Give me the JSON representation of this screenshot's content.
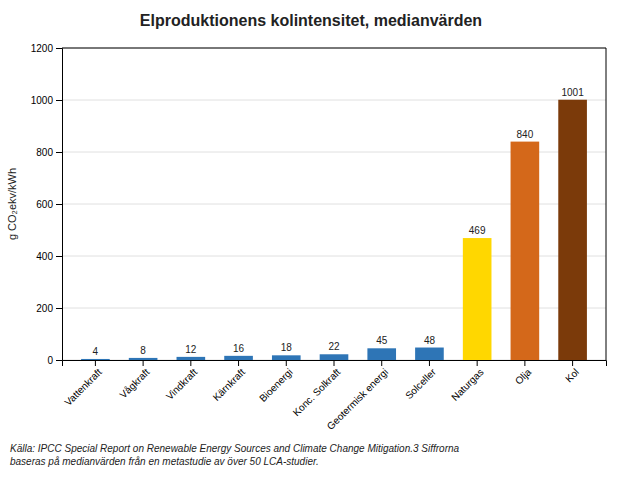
{
  "chart_data": {
    "type": "bar",
    "title": "Elproduktionens kolintensitet, medianvärden",
    "categories": [
      "Vattenkraft",
      "Vågkraft",
      "Vindkraft",
      "Kärnkraft",
      "Bioenergi",
      "Konc. Solkraft",
      "Geotermisk energi",
      "Solceller",
      "Naturgas",
      "Olja",
      "Kol"
    ],
    "values": [
      4,
      8,
      12,
      16,
      18,
      22,
      45,
      48,
      469,
      840,
      1001
    ],
    "colors": [
      "#2E75B6",
      "#2E75B6",
      "#2E75B6",
      "#2E75B6",
      "#2E75B6",
      "#2E75B6",
      "#2E75B6",
      "#2E75B6",
      "#FFD700",
      "#D4681A",
      "#7B3A0A"
    ],
    "ylabel": "g CO₂ekv/kWh",
    "ylim": [
      0,
      1200
    ],
    "yticks": [
      0,
      200,
      400,
      600,
      800,
      1000,
      1200
    ],
    "grid": true,
    "data_labels": true,
    "caption": "Källa: IPCC Special Report on Renewable Energy Sources and Climate Change Mitigation.3 Siffrorna\nbaseras på medianvärden från en metastudie av över 50 LCA-studier."
  }
}
